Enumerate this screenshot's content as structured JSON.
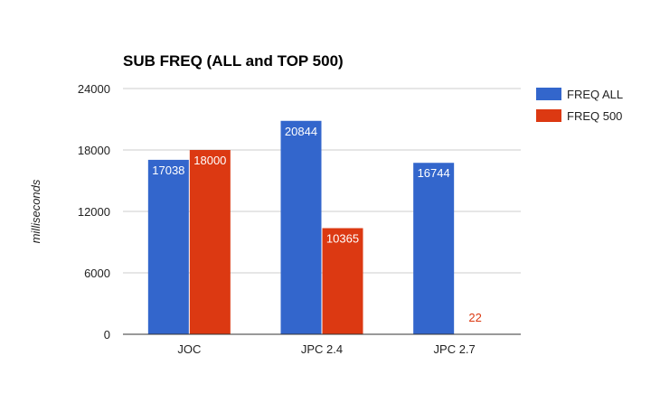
{
  "chart_data": {
    "type": "bar",
    "title": "SUB FREQ (ALL and TOP 500)",
    "xlabel": "",
    "ylabel": "milliseconds",
    "categories": [
      "JOC",
      "JPC 2.4",
      "JPC 2.7"
    ],
    "series": [
      {
        "name": "FREQ ALL",
        "values": [
          17038,
          20844,
          16744
        ],
        "labels": [
          "17038",
          "20844",
          "16744"
        ],
        "color": "#3366cc"
      },
      {
        "name": "FREQ 500",
        "values": [
          18000,
          10365,
          22
        ],
        "labels": [
          "18000",
          "10365",
          "22"
        ],
        "color": "#dc3912"
      }
    ],
    "ylim": [
      0,
      24000
    ],
    "yticks": [
      "0",
      "6000",
      "12000",
      "18000",
      "24000"
    ],
    "grid": true,
    "legend": "right"
  }
}
